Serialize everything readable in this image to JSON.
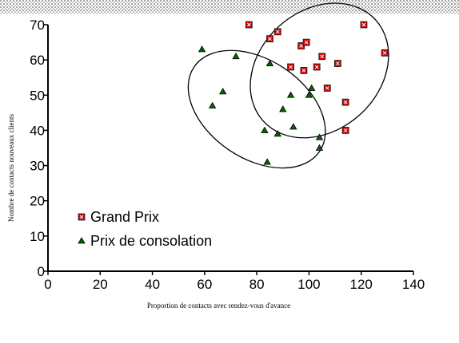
{
  "chart_data": {
    "type": "scatter",
    "title": "",
    "xlabel": "Proportion de contacts avec rendez-vous d'avance",
    "ylabel": "Nombre de contacts nouveaux clients",
    "xlim": [
      0,
      140
    ],
    "ylim": [
      0,
      70
    ],
    "xticks": [
      "0",
      "20",
      "40",
      "60",
      "80",
      "100",
      "120",
      "140"
    ],
    "yticks": [
      "0",
      "10",
      "20",
      "30",
      "40",
      "50",
      "60",
      "70"
    ],
    "grid": false,
    "legend_position": "bottom-left",
    "series": [
      {
        "name": "Grand Prix",
        "marker": "square",
        "color": "#cc0000",
        "points": [
          {
            "x": 77,
            "y": 70
          },
          {
            "x": 85,
            "y": 66
          },
          {
            "x": 88,
            "y": 68
          },
          {
            "x": 93,
            "y": 58
          },
          {
            "x": 97,
            "y": 64
          },
          {
            "x": 99,
            "y": 65
          },
          {
            "x": 98,
            "y": 57
          },
          {
            "x": 103,
            "y": 58
          },
          {
            "x": 105,
            "y": 61
          },
          {
            "x": 107,
            "y": 52
          },
          {
            "x": 111,
            "y": 59
          },
          {
            "x": 114,
            "y": 48
          },
          {
            "x": 114,
            "y": 40
          },
          {
            "x": 121,
            "y": 70
          },
          {
            "x": 129,
            "y": 62
          }
        ]
      },
      {
        "name": "Prix de consolation",
        "marker": "triangle",
        "color": "#006600",
        "points": [
          {
            "x": 59,
            "y": 63
          },
          {
            "x": 63,
            "y": 47
          },
          {
            "x": 67,
            "y": 51
          },
          {
            "x": 72,
            "y": 61
          },
          {
            "x": 83,
            "y": 40
          },
          {
            "x": 84,
            "y": 31
          },
          {
            "x": 85,
            "y": 59
          },
          {
            "x": 88,
            "y": 39
          },
          {
            "x": 90,
            "y": 46
          },
          {
            "x": 93,
            "y": 50
          },
          {
            "x": 94,
            "y": 41
          },
          {
            "x": 100,
            "y": 50
          },
          {
            "x": 101,
            "y": 52
          },
          {
            "x": 104,
            "y": 38
          },
          {
            "x": 104,
            "y": 35
          }
        ]
      }
    ],
    "annotations": [
      {
        "shape": "ellipse",
        "encloses": "Grand Prix",
        "center": [
          104,
          57
        ],
        "radii_data": [
          29,
          17
        ],
        "angle_deg": -42
      },
      {
        "shape": "ellipse",
        "encloses": "Prix de consolation",
        "center": [
          80,
          46
        ],
        "radii_data": [
          29,
          14
        ],
        "angle_deg": 34
      }
    ]
  }
}
